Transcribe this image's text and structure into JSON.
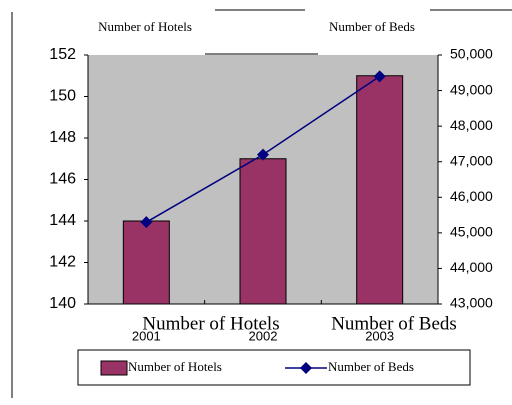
{
  "chart_data": {
    "type": "bar-line",
    "y_title": "Number of Hotels",
    "y2_title": "Number of Beds",
    "annotations": [
      "Number of Hotels",
      "Number of Beds"
    ],
    "categories": [
      "2001",
      "2002",
      "2003"
    ],
    "series": [
      {
        "name": "Number of Hotels",
        "type": "bar",
        "color": "#993366",
        "values": [
          144,
          147,
          151
        ]
      },
      {
        "name": "Number of Beds",
        "type": "line",
        "axis": "y2",
        "color": "#000080",
        "values": [
          45300,
          47200,
          49400
        ]
      }
    ],
    "ylim": [
      140,
      152
    ],
    "yticks": [
      140,
      142,
      144,
      146,
      148,
      150,
      152
    ],
    "y2lim": [
      43000,
      50000
    ],
    "y2ticks": [
      {
        "value": 43000,
        "label": "43,000"
      },
      {
        "value": 44000,
        "label": "44,000"
      },
      {
        "value": 45000,
        "label": "45,000"
      },
      {
        "value": 46000,
        "label": "46,000"
      },
      {
        "value": 47000,
        "label": "47,000"
      },
      {
        "value": 48000,
        "label": "48,000"
      },
      {
        "value": 49000,
        "label": "49,000"
      },
      {
        "value": 50000,
        "label": "50,000"
      }
    ],
    "plot_background": "#c0c0c0"
  }
}
